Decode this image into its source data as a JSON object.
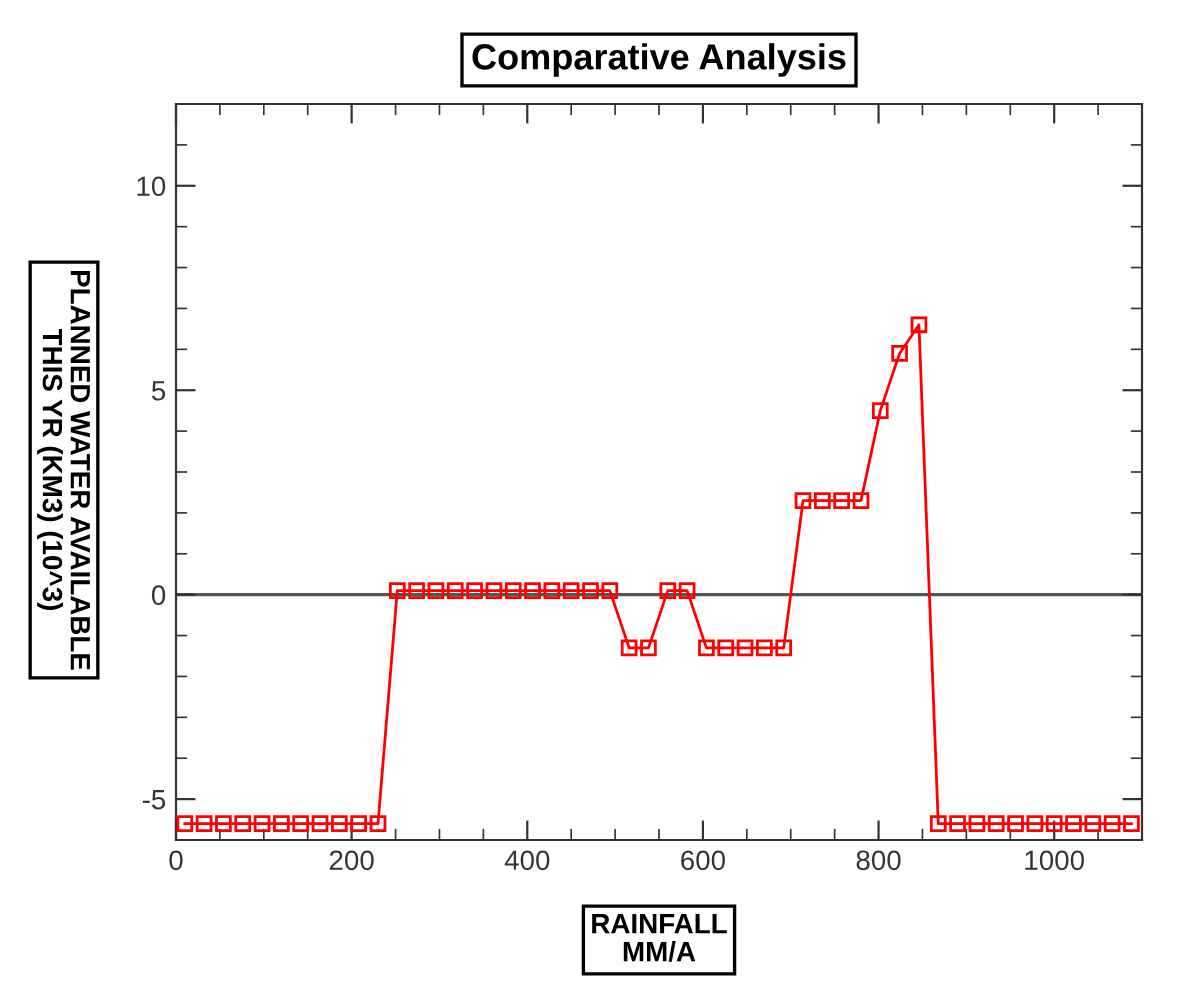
{
  "chart_data": {
    "type": "line",
    "title": "Comparative Analysis",
    "xlabel": "RAINFALL\nMM/A",
    "ylabel": "PLANNED WATER AVAILABLE\nTHIS YR (KM3) (10^3)",
    "x": [
      10,
      32,
      54,
      76,
      98,
      120,
      142,
      164,
      186,
      208,
      230,
      252,
      274,
      296,
      318,
      340,
      362,
      384,
      406,
      428,
      450,
      472,
      494,
      516,
      538,
      560,
      582,
      604,
      626,
      648,
      670,
      692,
      714,
      736,
      758,
      780,
      802,
      824,
      846,
      868,
      890,
      912,
      934,
      956,
      978,
      1000,
      1022,
      1044,
      1066,
      1088
    ],
    "series": [
      {
        "color": "#ff0000",
        "values": [
          -5.6,
          -5.6,
          -5.6,
          -5.6,
          -5.6,
          -5.6,
          -5.6,
          -5.6,
          -5.6,
          -5.6,
          -5.6,
          0.1,
          0.1,
          0.1,
          0.1,
          0.1,
          0.1,
          0.1,
          0.1,
          0.1,
          0.1,
          0.1,
          0.1,
          -1.3,
          -1.3,
          0.1,
          0.1,
          -1.3,
          -1.3,
          -1.3,
          -1.3,
          -1.3,
          2.3,
          2.3,
          2.3,
          2.3,
          4.5,
          5.9,
          6.6,
          -5.6,
          -5.6,
          -5.6,
          -5.6,
          -5.6,
          -5.6,
          -5.6,
          -5.6,
          -5.6,
          -5.6,
          -5.6
        ]
      }
    ],
    "xlim": [
      0,
      1100
    ],
    "ylim": [
      -6,
      12
    ],
    "xticks": [
      0,
      200,
      400,
      600,
      800,
      1000
    ],
    "yticks": [
      -5,
      0,
      5,
      10
    ],
    "marker": "square",
    "line_style": "solid",
    "ref_lines": [
      {
        "axis": "y",
        "value": 0,
        "color": "#555555"
      }
    ]
  }
}
